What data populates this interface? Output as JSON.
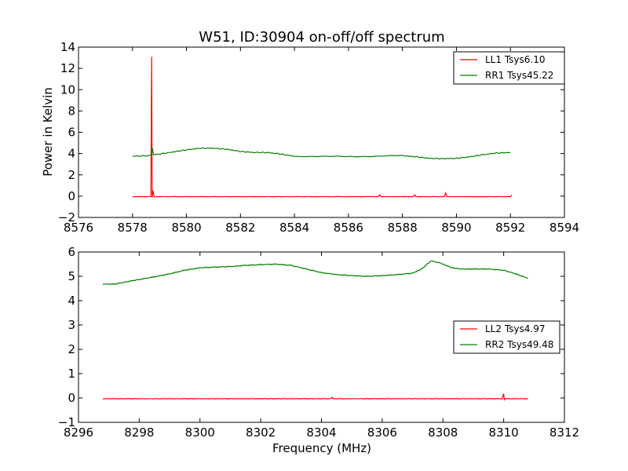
{
  "chart_data": [
    {
      "type": "line",
      "title": "W51, ID:30904 on-off/off spectrum",
      "ylabel": "Power in Kelvin",
      "xlabel": "",
      "xlim": [
        8576,
        8594
      ],
      "ylim": [
        -2,
        14
      ],
      "xticks": [
        "8576",
        "8578",
        "8580",
        "8582",
        "8584",
        "8586",
        "8588",
        "8590",
        "8592",
        "8594"
      ],
      "yticks": [
        "−2",
        "0",
        "2",
        "4",
        "6",
        "8",
        "10",
        "12",
        "14"
      ],
      "legend_position": "top-right",
      "series": [
        {
          "name": "LL1 Tsys6.10",
          "color": "#ff0000",
          "x": [
            8578.0,
            8578.68,
            8578.71,
            8578.73,
            8578.76,
            8578.8,
            8579.0,
            8582.0,
            8584.0,
            8587.1,
            8587.15,
            8587.2,
            8588.4,
            8588.45,
            8588.5,
            8589.55,
            8589.6,
            8589.65,
            8592.0,
            8592.05
          ],
          "y": [
            -0.05,
            -0.05,
            13.1,
            -0.1,
            0.5,
            -0.05,
            -0.05,
            -0.05,
            -0.05,
            -0.05,
            0.1,
            -0.05,
            -0.05,
            0.1,
            -0.05,
            -0.05,
            0.3,
            -0.05,
            -0.05,
            0.1
          ]
        },
        {
          "name": "RR1 Tsys45.22",
          "color": "#008000",
          "x": [
            8578.0,
            8578.5,
            8578.7,
            8578.74,
            8578.78,
            8579.0,
            8579.5,
            8580.0,
            8580.5,
            8581.0,
            8581.5,
            8582.0,
            8582.5,
            8583.0,
            8583.5,
            8584.0,
            8585.0,
            8586.0,
            8587.0,
            8588.0,
            8588.5,
            8589.0,
            8589.5,
            8590.0,
            8590.5,
            8591.0,
            8591.5,
            8592.0
          ],
          "y": [
            3.75,
            3.8,
            3.85,
            4.5,
            3.9,
            3.95,
            4.15,
            4.35,
            4.5,
            4.5,
            4.4,
            4.2,
            4.1,
            4.1,
            3.95,
            3.75,
            3.72,
            3.72,
            3.75,
            3.8,
            3.7,
            3.55,
            3.52,
            3.55,
            3.7,
            3.9,
            4.05,
            4.1
          ]
        }
      ]
    },
    {
      "type": "line",
      "title": "",
      "xlabel": "Frequency (MHz)",
      "ylabel": "",
      "xlim": [
        8296,
        8312
      ],
      "ylim": [
        -1,
        6
      ],
      "xticks": [
        "8296",
        "8298",
        "8300",
        "8302",
        "8304",
        "8306",
        "8308",
        "8310",
        "8312"
      ],
      "yticks": [
        "−1",
        "0",
        "1",
        "2",
        "3",
        "4",
        "5",
        "6"
      ],
      "legend_position": "center-right",
      "series": [
        {
          "name": "LL2 Tsys4.97",
          "color": "#ff0000",
          "x": [
            8296.8,
            8300.0,
            8304.3,
            8304.35,
            8304.4,
            8309.95,
            8310.0,
            8310.02,
            8310.05,
            8310.8
          ],
          "y": [
            -0.03,
            -0.03,
            -0.03,
            0.02,
            -0.03,
            -0.03,
            0.18,
            -0.07,
            -0.03,
            -0.03
          ]
        },
        {
          "name": "RR2 Tsys49.48",
          "color": "#008000",
          "x": [
            8296.8,
            8297.2,
            8297.6,
            8298.0,
            8298.5,
            8299.0,
            8299.5,
            8300.0,
            8300.5,
            8301.0,
            8301.5,
            8302.0,
            8302.5,
            8303.0,
            8303.5,
            8304.0,
            8304.5,
            8305.0,
            8305.5,
            8306.0,
            8306.5,
            8307.0,
            8307.3,
            8307.6,
            8307.8,
            8308.0,
            8308.3,
            8308.6,
            8309.0,
            8309.5,
            8310.0,
            8310.4,
            8310.8
          ],
          "y": [
            4.68,
            4.68,
            4.78,
            4.87,
            4.98,
            5.1,
            5.25,
            5.35,
            5.38,
            5.4,
            5.45,
            5.48,
            5.5,
            5.45,
            5.3,
            5.15,
            5.07,
            5.03,
            5.0,
            5.03,
            5.07,
            5.13,
            5.3,
            5.63,
            5.58,
            5.5,
            5.35,
            5.3,
            5.3,
            5.3,
            5.25,
            5.1,
            4.92
          ]
        }
      ]
    }
  ]
}
